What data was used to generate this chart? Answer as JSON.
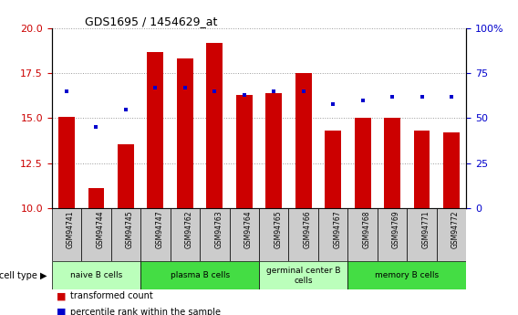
{
  "title": "GDS1695 / 1454629_at",
  "samples": [
    "GSM94741",
    "GSM94744",
    "GSM94745",
    "GSM94747",
    "GSM94762",
    "GSM94763",
    "GSM94764",
    "GSM94765",
    "GSM94766",
    "GSM94767",
    "GSM94768",
    "GSM94769",
    "GSM94771",
    "GSM94772"
  ],
  "transformed_count": [
    15.05,
    11.1,
    13.55,
    18.7,
    18.3,
    19.2,
    16.3,
    16.4,
    17.5,
    14.3,
    15.0,
    15.0,
    14.3,
    14.2
  ],
  "percentile_rank": [
    65,
    45,
    55,
    67,
    67,
    65,
    63,
    65,
    65,
    58,
    60,
    62,
    62,
    62
  ],
  "ylim": [
    10,
    20
  ],
  "y2lim": [
    0,
    100
  ],
  "yticks": [
    10,
    12.5,
    15,
    17.5,
    20
  ],
  "y2ticks": [
    0,
    25,
    50,
    75,
    100
  ],
  "y2ticklabels": [
    "0",
    "25",
    "50",
    "75",
    "100%"
  ],
  "bar_color": "#cc0000",
  "dot_color": "#0000cc",
  "cell_groups": [
    {
      "label": "naive B cells",
      "start": 0,
      "end": 3,
      "color": "#bbffbb"
    },
    {
      "label": "plasma B cells",
      "start": 3,
      "end": 7,
      "color": "#44dd44"
    },
    {
      "label": "germinal center B\ncells",
      "start": 7,
      "end": 10,
      "color": "#bbffbb"
    },
    {
      "label": "memory B cells",
      "start": 10,
      "end": 14,
      "color": "#44dd44"
    }
  ],
  "xtick_bg": "#cccccc",
  "bar_width": 0.55,
  "grid_linestyle": ":",
  "grid_color": "#999999",
  "grid_linewidth": 0.7
}
